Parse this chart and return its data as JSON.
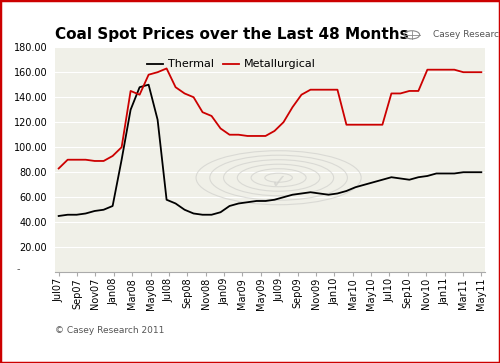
{
  "title": "Coal Spot Prices over the Last 48 Months",
  "watermark": "© Casey Research 2011",
  "logo_text": "Casey Research.com",
  "xlabels": [
    "Jul07",
    "Sep07",
    "Nov07",
    "Jan08",
    "Mar08",
    "May08",
    "Jul08",
    "Sep08",
    "Nov08",
    "Jan09",
    "Mar09",
    "May09",
    "Jul09",
    "Sep09",
    "Nov09",
    "Jan10",
    "Mar10",
    "May10",
    "Jul10",
    "Sep10",
    "Nov10",
    "Jan11",
    "Mar11",
    "May11"
  ],
  "ylim": [
    0,
    180
  ],
  "yticks": [
    20.0,
    40.0,
    60.0,
    80.0,
    100.0,
    120.0,
    140.0,
    160.0,
    180.0
  ],
  "thermal_color": "#000000",
  "metallurgical_color": "#cc0000",
  "bg_color": "#ffffff",
  "plot_bg_color": "#f0f0e8",
  "grid_color": "#ffffff",
  "border_color": "#cc0000",
  "ylabel_fontsize": 7,
  "xlabel_fontsize": 7,
  "title_fontsize": 11,
  "legend_fontsize": 8,
  "thermal_values": [
    45,
    46,
    46,
    47,
    49,
    50,
    53,
    90,
    130,
    148,
    150,
    122,
    58,
    55,
    50,
    47,
    46,
    46,
    48,
    53,
    55,
    56,
    57,
    57,
    58,
    60,
    62,
    63,
    64,
    63,
    62,
    63,
    65,
    68,
    70,
    72,
    74,
    76,
    75,
    74,
    76,
    77,
    79,
    79,
    79,
    80,
    80,
    80
  ],
  "metall_values": [
    83,
    90,
    90,
    90,
    89,
    89,
    93,
    100,
    145,
    142,
    158,
    160,
    163,
    148,
    143,
    140,
    128,
    125,
    115,
    110,
    110,
    109,
    109,
    109,
    113,
    120,
    132,
    142,
    146,
    146,
    146,
    146,
    118,
    118,
    118,
    118,
    118,
    143,
    143,
    145,
    145,
    162,
    162,
    162,
    162,
    160,
    160,
    160
  ]
}
